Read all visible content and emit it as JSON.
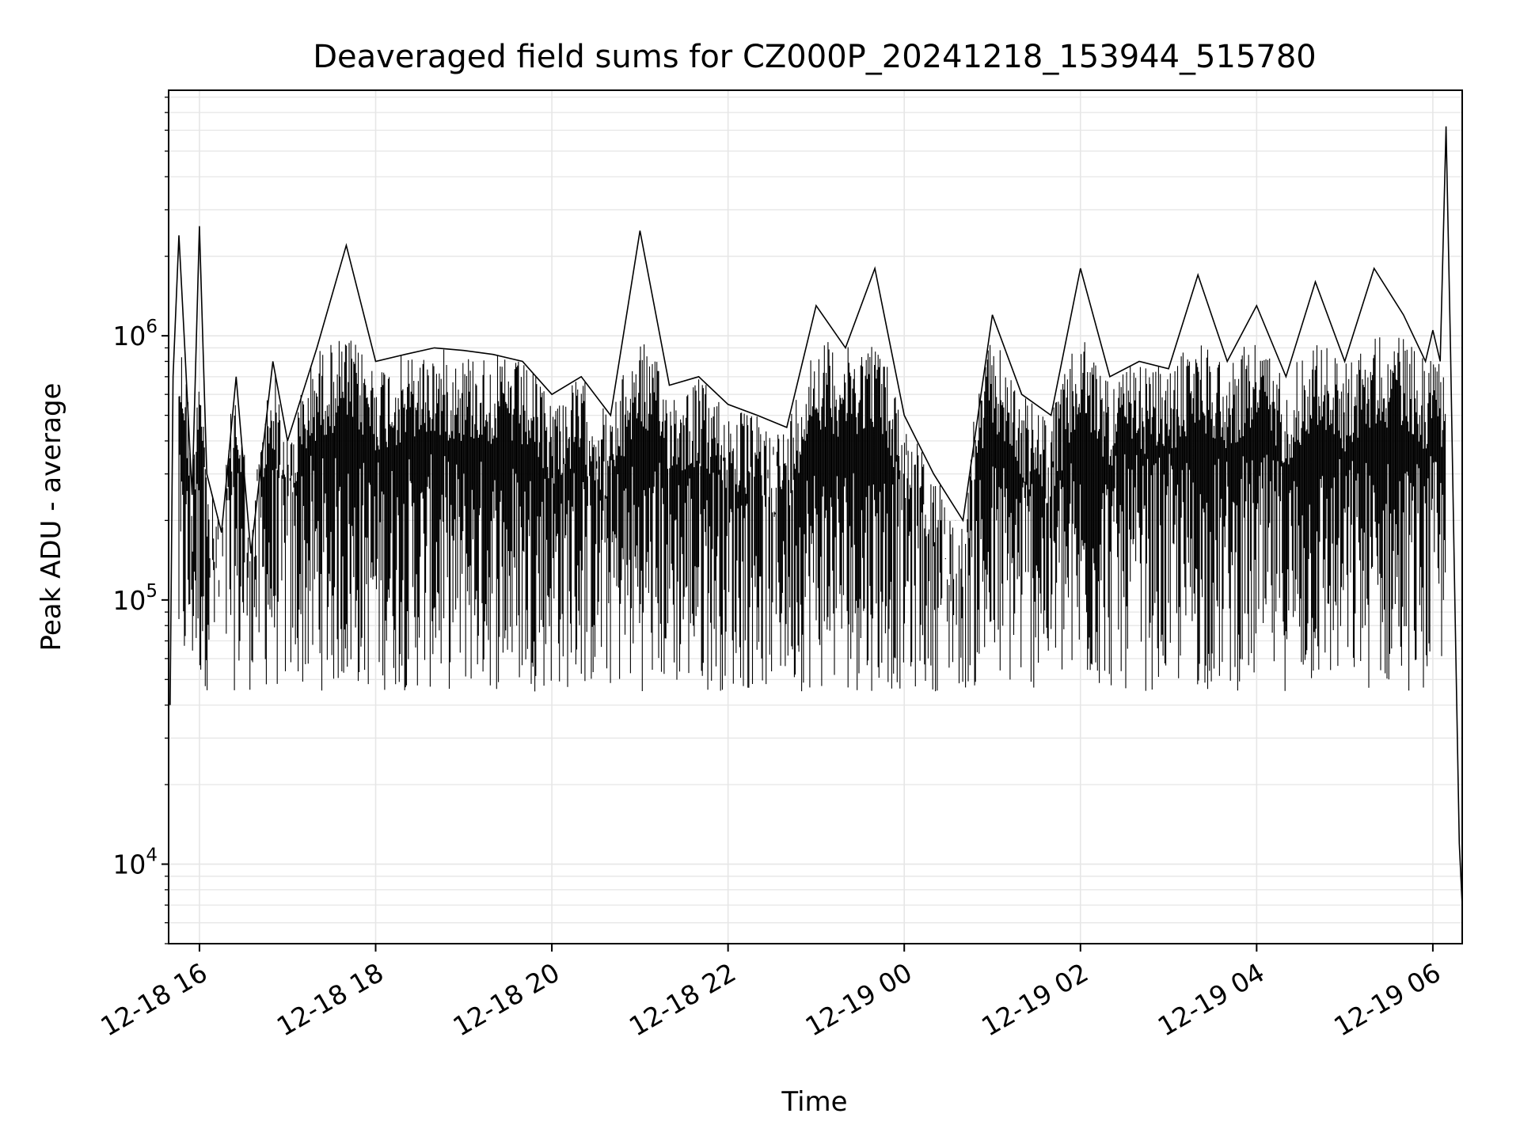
{
  "chart_data": {
    "type": "line",
    "title": "Deaveraged field sums for CZ000P_20241218_153944_515780",
    "xlabel": "Time",
    "ylabel": "Peak ADU - average",
    "yscale": "log",
    "ylim": [
      5000,
      8500000
    ],
    "xlim": [
      "2024-12-18 15:39",
      "2024-12-19 06:20"
    ],
    "grid": true,
    "line_color": "#000000",
    "grid_color": "#e6e6e6",
    "x_ticks": [
      {
        "value": "2024-12-18 16:00",
        "label": "12-18 16"
      },
      {
        "value": "2024-12-18 18:00",
        "label": "12-18 18"
      },
      {
        "value": "2024-12-18 20:00",
        "label": "12-18 20"
      },
      {
        "value": "2024-12-18 22:00",
        "label": "12-18 22"
      },
      {
        "value": "2024-12-19 00:00",
        "label": "12-19 00"
      },
      {
        "value": "2024-12-19 02:00",
        "label": "12-19 02"
      },
      {
        "value": "2024-12-19 04:00",
        "label": "12-19 04"
      },
      {
        "value": "2024-12-19 06:00",
        "label": "12-19 06"
      }
    ],
    "y_ticks": [
      {
        "value": 10000,
        "base": "10",
        "exp": "4"
      },
      {
        "value": 100000,
        "base": "10",
        "exp": "5"
      },
      {
        "value": 1000000,
        "base": "10",
        "exp": "6"
      }
    ],
    "series": [
      {
        "x": [
          "2024-12-18 15:40",
          "2024-12-18 15:42",
          "2024-12-18 15:46",
          "2024-12-18 15:50",
          "2024-12-18 15:55",
          "2024-12-18 16:00",
          "2024-12-18 16:05",
          "2024-12-18 16:15",
          "2024-12-18 16:25",
          "2024-12-18 16:35",
          "2024-12-18 16:50",
          "2024-12-18 17:00",
          "2024-12-18 17:20",
          "2024-12-18 17:40",
          "2024-12-18 18:00",
          "2024-12-18 18:20",
          "2024-12-18 18:40",
          "2024-12-18 19:00",
          "2024-12-18 19:20",
          "2024-12-18 19:40",
          "2024-12-18 20:00",
          "2024-12-18 20:20",
          "2024-12-18 20:40",
          "2024-12-18 21:00",
          "2024-12-18 21:20",
          "2024-12-18 21:40",
          "2024-12-18 22:00",
          "2024-12-18 22:20",
          "2024-12-18 22:40",
          "2024-12-18 23:00",
          "2024-12-18 23:20",
          "2024-12-18 23:40",
          "2024-12-19 00:00",
          "2024-12-19 00:20",
          "2024-12-19 00:40",
          "2024-12-19 01:00",
          "2024-12-19 01:20",
          "2024-12-19 01:40",
          "2024-12-19 02:00",
          "2024-12-19 02:20",
          "2024-12-19 02:40",
          "2024-12-19 03:00",
          "2024-12-19 03:20",
          "2024-12-19 03:40",
          "2024-12-19 04:00",
          "2024-12-19 04:20",
          "2024-12-19 04:40",
          "2024-12-19 05:00",
          "2024-12-19 05:20",
          "2024-12-19 05:40",
          "2024-12-19 05:55",
          "2024-12-19 06:00",
          "2024-12-19 06:05",
          "2024-12-19 06:09",
          "2024-12-19 06:12",
          "2024-12-19 06:15",
          "2024-12-19 06:18",
          "2024-12-19 06:20"
        ],
        "y": [
          40000,
          700000,
          2400000,
          900000,
          250000,
          2600000,
          300000,
          180000,
          700000,
          150000,
          800000,
          400000,
          900000,
          2200000,
          800000,
          850000,
          900000,
          880000,
          850000,
          800000,
          600000,
          700000,
          500000,
          2500000,
          650000,
          700000,
          550000,
          500000,
          450000,
          1300000,
          900000,
          1800000,
          500000,
          300000,
          200000,
          1200000,
          600000,
          500000,
          1800000,
          700000,
          800000,
          750000,
          1700000,
          800000,
          1300000,
          700000,
          1600000,
          800000,
          1800000,
          1200000,
          800000,
          1050000,
          800000,
          6200000,
          900000,
          100000,
          12000,
          7000
        ]
      }
    ]
  }
}
